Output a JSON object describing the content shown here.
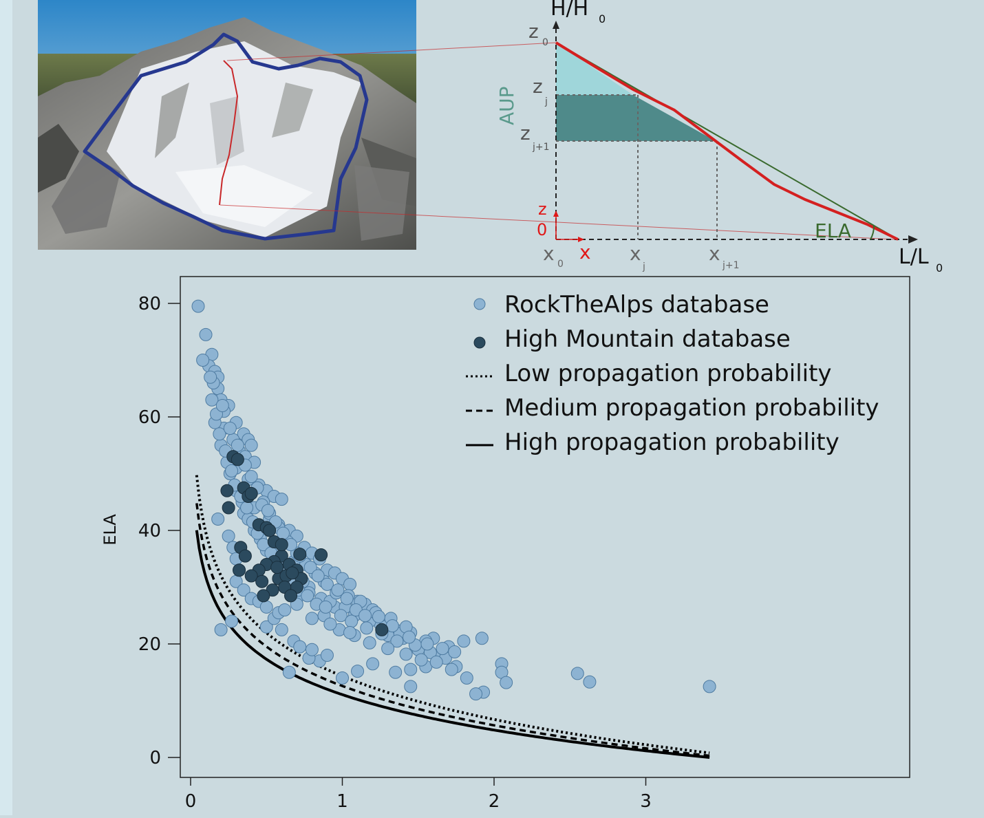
{
  "schematic": {
    "y_axis_label": "H/H",
    "y_axis_sub": "0",
    "x_axis_label": "L/L",
    "x_axis_sub": "0",
    "aup_label": "AUP",
    "ela_label": "ELA",
    "z0_label": "z",
    "z0_sub": "0",
    "zj_label": "z",
    "zj_sub": "j",
    "zj1_label": "z",
    "zj1_sub": "j+1",
    "x0_label": "x",
    "x0_sub": "0",
    "xj_label": "x",
    "xj_sub": "j",
    "xj1_label": "x",
    "xj1_sub": "j+1",
    "local_z_label": "z",
    "local_x_label": "x",
    "origin_label": "0",
    "colors": {
      "profile": "#d42020",
      "chord": "#3a6a2e",
      "aup_light": "#9fd6da",
      "aup_dark": "#4f8a8a",
      "aup_text": "#5a9a8c",
      "local_axes": "#e01818"
    }
  },
  "photo": {
    "description_icon": "glacier-aerial-photo"
  },
  "chart_data": {
    "type": "scatter",
    "title": "",
    "xlabel": "",
    "ylabel": "ELA",
    "xlim": [
      -0.05,
      3.8
    ],
    "ylim": [
      -4,
      86
    ],
    "xticks": [
      "0",
      "1",
      "2",
      "3"
    ],
    "yticks": [
      "0",
      "20",
      "40",
      "60",
      "80"
    ],
    "legend_position": "top-right",
    "legend": [
      {
        "label": "RockTheAlps database",
        "marker": "circle-light"
      },
      {
        "label": "High Mountain database",
        "marker": "circle-dark"
      },
      {
        "label": "Low propagation probability",
        "marker": "dotted-line"
      },
      {
        "label": "Medium propagation probability",
        "marker": "dashed-line"
      },
      {
        "label": "High propagation probability",
        "marker": "solid-line"
      }
    ],
    "colors": {
      "rock": "#8db3d2",
      "rock_edge": "#4e7ba1",
      "high": "#2b4a5e",
      "high_edge": "#1a2f3d",
      "curve": "#000000"
    },
    "series": [
      {
        "name": "RockTheAlps database",
        "points": [
          [
            0.05,
            79.5
          ],
          [
            0.1,
            74.5
          ],
          [
            0.14,
            71
          ],
          [
            0.12,
            69
          ],
          [
            0.16,
            68
          ],
          [
            0.18,
            67
          ],
          [
            0.08,
            70
          ],
          [
            0.18,
            65
          ],
          [
            0.2,
            63
          ],
          [
            0.25,
            62
          ],
          [
            0.22,
            61
          ],
          [
            0.3,
            59
          ],
          [
            0.35,
            57
          ],
          [
            0.38,
            56
          ],
          [
            0.4,
            55
          ],
          [
            0.22,
            58
          ],
          [
            0.28,
            56
          ],
          [
            0.32,
            54
          ],
          [
            0.36,
            53
          ],
          [
            0.42,
            52
          ],
          [
            0.3,
            51
          ],
          [
            0.26,
            50
          ],
          [
            0.38,
            49
          ],
          [
            0.45,
            48
          ],
          [
            0.5,
            47
          ],
          [
            0.55,
            46
          ],
          [
            0.6,
            45.5
          ],
          [
            0.48,
            45
          ],
          [
            0.42,
            44
          ],
          [
            0.35,
            43
          ],
          [
            0.52,
            42
          ],
          [
            0.58,
            41
          ],
          [
            0.65,
            40
          ],
          [
            0.7,
            39
          ],
          [
            0.6,
            38
          ],
          [
            0.55,
            37
          ],
          [
            0.75,
            37
          ],
          [
            0.8,
            36
          ],
          [
            0.85,
            35
          ],
          [
            0.68,
            34.5
          ],
          [
            0.62,
            34
          ],
          [
            0.9,
            33
          ],
          [
            0.95,
            32.5
          ],
          [
            1.0,
            31.5
          ],
          [
            1.05,
            30.5
          ],
          [
            0.78,
            30
          ],
          [
            0.72,
            29
          ],
          [
            0.7,
            28
          ],
          [
            1.1,
            27.5
          ],
          [
            1.15,
            27
          ],
          [
            1.2,
            26
          ],
          [
            0.95,
            26.5
          ],
          [
            0.88,
            25
          ],
          [
            0.8,
            24.5
          ],
          [
            1.25,
            23.5
          ],
          [
            1.35,
            22.5
          ],
          [
            1.45,
            22
          ],
          [
            1.3,
            21.5
          ],
          [
            1.4,
            21
          ],
          [
            1.6,
            21
          ],
          [
            1.7,
            19.5
          ],
          [
            1.5,
            19
          ],
          [
            1.55,
            20.5
          ],
          [
            1.65,
            18
          ],
          [
            1.75,
            16
          ],
          [
            1.55,
            16
          ],
          [
            1.45,
            15.5
          ],
          [
            1.35,
            15
          ],
          [
            1.2,
            16.5
          ],
          [
            1.1,
            15.2
          ],
          [
            1.0,
            14
          ],
          [
            1.82,
            14
          ],
          [
            1.8,
            20.5
          ],
          [
            1.92,
            21
          ],
          [
            2.05,
            16.5
          ],
          [
            2.05,
            15
          ],
          [
            2.08,
            13.2
          ],
          [
            2.55,
            14.8
          ],
          [
            2.63,
            13.3
          ],
          [
            1.93,
            11.5
          ],
          [
            1.88,
            11.2
          ],
          [
            1.45,
            12.5
          ],
          [
            3.42,
            12.5
          ],
          [
            0.65,
            15
          ],
          [
            0.85,
            17
          ],
          [
            0.78,
            17.5
          ],
          [
            0.2,
            22.5
          ],
          [
            0.27,
            24
          ],
          [
            0.5,
            23
          ],
          [
            0.55,
            24.5
          ],
          [
            0.6,
            22.5
          ],
          [
            0.68,
            20.5
          ],
          [
            0.72,
            19.5
          ],
          [
            0.8,
            19
          ],
          [
            0.9,
            18
          ],
          [
            0.18,
            42
          ],
          [
            0.25,
            39
          ],
          [
            0.28,
            37
          ],
          [
            0.3,
            35
          ],
          [
            0.32,
            33
          ],
          [
            0.3,
            31
          ],
          [
            0.35,
            29.5
          ],
          [
            0.4,
            28
          ],
          [
            0.45,
            27.5
          ],
          [
            0.5,
            26.5
          ],
          [
            0.58,
            25.5
          ],
          [
            0.62,
            26
          ],
          [
            0.7,
            27
          ],
          [
            0.16,
            59
          ],
          [
            0.2,
            55
          ],
          [
            0.24,
            52
          ],
          [
            0.3,
            47
          ],
          [
            0.34,
            45
          ],
          [
            0.38,
            42
          ],
          [
            0.42,
            40
          ],
          [
            0.46,
            38.5
          ],
          [
            0.5,
            36.5
          ],
          [
            0.56,
            35
          ],
          [
            0.62,
            33
          ],
          [
            0.66,
            31.5
          ],
          [
            0.74,
            31
          ],
          [
            0.78,
            29
          ],
          [
            0.86,
            28
          ],
          [
            0.92,
            27.5
          ],
          [
            1.02,
            26.5
          ],
          [
            1.08,
            25
          ],
          [
            1.18,
            24
          ],
          [
            1.28,
            23
          ],
          [
            1.38,
            21.8
          ],
          [
            0.52,
            43
          ],
          [
            0.58,
            40.5
          ],
          [
            0.64,
            38
          ],
          [
            0.7,
            36
          ],
          [
            0.76,
            34
          ],
          [
            0.82,
            32.5
          ],
          [
            0.88,
            31
          ],
          [
            0.96,
            29
          ],
          [
            1.04,
            28.5
          ],
          [
            1.12,
            27.5
          ],
          [
            1.22,
            25.5
          ],
          [
            1.32,
            24.5
          ],
          [
            1.42,
            23
          ],
          [
            0.14,
            63
          ],
          [
            0.17,
            60.5
          ],
          [
            0.19,
            57
          ],
          [
            0.23,
            54
          ],
          [
            0.27,
            50.5
          ],
          [
            0.29,
            48
          ],
          [
            0.33,
            46
          ],
          [
            0.37,
            44
          ],
          [
            0.41,
            41.5
          ],
          [
            0.44,
            39.5
          ],
          [
            0.48,
            37.5
          ],
          [
            0.53,
            36
          ],
          [
            0.57,
            34.5
          ],
          [
            0.63,
            32
          ],
          [
            0.67,
            30.5
          ],
          [
            0.71,
            29.5
          ],
          [
            0.77,
            28.5
          ],
          [
            0.83,
            27
          ],
          [
            0.89,
            26.5
          ],
          [
            0.99,
            25
          ],
          [
            1.06,
            24
          ],
          [
            1.16,
            22.8
          ],
          [
            1.26,
            21.8
          ],
          [
            1.36,
            20.5
          ],
          [
            1.48,
            19.8
          ],
          [
            1.58,
            18.5
          ],
          [
            1.68,
            17.5
          ],
          [
            1.72,
            15.5
          ],
          [
            1.62,
            16.8
          ],
          [
            1.52,
            17.2
          ],
          [
            1.42,
            18.2
          ],
          [
            1.3,
            19.2
          ],
          [
            1.18,
            20.2
          ],
          [
            1.08,
            21.5
          ],
          [
            0.98,
            22.5
          ],
          [
            0.92,
            23.5
          ],
          [
            1.05,
            22
          ],
          [
            0.15,
            66
          ],
          [
            0.13,
            67
          ],
          [
            0.21,
            62
          ],
          [
            0.26,
            58
          ],
          [
            0.31,
            55
          ],
          [
            0.36,
            51.5
          ],
          [
            0.4,
            49.5
          ],
          [
            0.44,
            47.5
          ],
          [
            0.47,
            44.5
          ],
          [
            0.51,
            43.5
          ],
          [
            0.56,
            41.5
          ],
          [
            0.61,
            39.5
          ],
          [
            0.66,
            37.5
          ],
          [
            0.72,
            35.5
          ],
          [
            0.79,
            33.5
          ],
          [
            0.84,
            32
          ],
          [
            0.9,
            30.5
          ],
          [
            0.97,
            29.5
          ],
          [
            1.03,
            28
          ],
          [
            1.09,
            26
          ],
          [
            1.15,
            25
          ],
          [
            1.24,
            24.8
          ],
          [
            1.33,
            23.2
          ],
          [
            1.44,
            21.2
          ],
          [
            1.56,
            20
          ],
          [
            1.66,
            19.2
          ],
          [
            1.74,
            18.6
          ]
        ]
      },
      {
        "name": "High Mountain database",
        "points": [
          [
            0.28,
            53
          ],
          [
            0.31,
            52.5
          ],
          [
            0.24,
            47
          ],
          [
            0.35,
            47.5
          ],
          [
            0.38,
            46
          ],
          [
            0.25,
            44
          ],
          [
            0.4,
            46.5
          ],
          [
            0.45,
            41
          ],
          [
            0.5,
            40.5
          ],
          [
            0.55,
            38
          ],
          [
            0.52,
            40
          ],
          [
            0.33,
            37
          ],
          [
            0.36,
            35.5
          ],
          [
            0.6,
            35.5
          ],
          [
            0.65,
            34
          ],
          [
            0.72,
            35.8
          ],
          [
            0.86,
            35.7
          ],
          [
            0.55,
            34.5
          ],
          [
            0.5,
            34
          ],
          [
            0.45,
            33
          ],
          [
            0.4,
            32
          ],
          [
            0.32,
            33
          ],
          [
            0.47,
            31
          ],
          [
            0.58,
            31.5
          ],
          [
            0.63,
            32
          ],
          [
            0.7,
            33
          ],
          [
            0.73,
            31.5
          ],
          [
            0.7,
            30
          ],
          [
            0.62,
            30
          ],
          [
            0.54,
            29.5
          ],
          [
            0.48,
            28.5
          ],
          [
            0.66,
            28.5
          ],
          [
            1.26,
            22.5
          ],
          [
            0.6,
            37.5
          ],
          [
            0.57,
            33.5
          ],
          [
            0.67,
            32.5
          ]
        ]
      }
    ],
    "curves": [
      {
        "name": "Low propagation probability",
        "a": 33.6,
        "b": 11.0,
        "style": "dotted"
      },
      {
        "name": "Medium propagation probability",
        "a": 33.4,
        "b": 10.0,
        "style": "dashed"
      },
      {
        "name": "High propagation probability",
        "a": 33.3,
        "b": 9.0,
        "style": "solid"
      }
    ],
    "curve_x_range": [
      0.04,
      3.42
    ]
  }
}
